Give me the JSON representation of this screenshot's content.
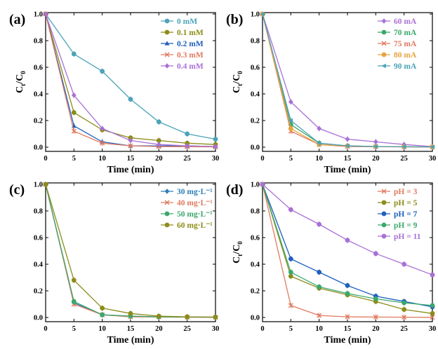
{
  "chart_data": [
    {
      "type": "line",
      "panel_label": "(a)",
      "xlabel": "Time (min)",
      "ylabel_main": "C",
      "ylabel_sub1": "t",
      "ylabel_mid": "/C",
      "ylabel_sub2": "0",
      "x": [
        0,
        5,
        10,
        15,
        20,
        25,
        30
      ],
      "xlim": [
        0,
        30
      ],
      "ylim": [
        0,
        1.0
      ],
      "xticks": [
        0,
        5,
        10,
        15,
        20,
        25,
        30
      ],
      "yticks": [
        0.0,
        0.2,
        0.4,
        0.6,
        0.8,
        1.0
      ],
      "ytick_labels": [
        "0.0",
        "0.2",
        "0.4",
        "0.6",
        "0.8",
        "1.0"
      ],
      "legend_position": "top-right",
      "series": [
        {
          "name": "0   mM",
          "color": "#4aa3b8",
          "marker": "circle",
          "values": [
            1.0,
            0.7,
            0.57,
            0.36,
            0.19,
            0.1,
            0.06
          ]
        },
        {
          "name": "0.1 mM",
          "color": "#8c8c1a",
          "marker": "circle",
          "values": [
            1.0,
            0.26,
            0.13,
            0.07,
            0.05,
            0.03,
            0.02
          ]
        },
        {
          "name": "0.2 mM",
          "color": "#1f5fbf",
          "marker": "triangle",
          "values": [
            1.0,
            0.16,
            0.04,
            0.01,
            0.01,
            0.01,
            0.005
          ]
        },
        {
          "name": "0.3 mM",
          "color": "#e07a5f",
          "marker": "x",
          "values": [
            1.0,
            0.12,
            0.03,
            0.01,
            0.005,
            0.003,
            0.002
          ]
        },
        {
          "name": "0.4 mM",
          "color": "#a970d6",
          "marker": "diamond",
          "values": [
            1.0,
            0.39,
            0.14,
            0.05,
            0.02,
            0.01,
            0.005
          ]
        }
      ]
    },
    {
      "type": "line",
      "panel_label": "(b)",
      "xlabel": "Time (min)",
      "ylabel_main": "C",
      "ylabel_sub1": "t",
      "ylabel_mid": "/C",
      "ylabel_sub2": "0",
      "x": [
        0,
        5,
        10,
        15,
        20,
        25,
        30
      ],
      "xlim": [
        0,
        30
      ],
      "ylim": [
        0,
        1.0
      ],
      "xticks": [
        0,
        5,
        10,
        15,
        20,
        25,
        30
      ],
      "yticks": [
        0.0,
        0.2,
        0.4,
        0.6,
        0.8,
        1.0
      ],
      "ytick_labels": [
        "0.0",
        "0.2",
        "0.4",
        "0.6",
        "0.8",
        "1.0"
      ],
      "legend_position": "top-right",
      "series": [
        {
          "name": "60  mA",
          "color": "#a970d6",
          "marker": "diamond",
          "values": [
            1.0,
            0.34,
            0.14,
            0.06,
            0.04,
            0.02,
            0.005
          ]
        },
        {
          "name": "70  mA",
          "color": "#3aa86b",
          "marker": "circle",
          "values": [
            1.0,
            0.17,
            0.03,
            0.01,
            0.005,
            0.003,
            0.002
          ]
        },
        {
          "name": "75  mA",
          "color": "#e07a5f",
          "marker": "x",
          "values": [
            1.0,
            0.12,
            0.02,
            0.005,
            0.003,
            0.002,
            0.001
          ]
        },
        {
          "name": "80  mA",
          "color": "#e8a33d",
          "marker": "circle",
          "values": [
            1.0,
            0.14,
            0.02,
            0.01,
            0.005,
            0.003,
            0.002
          ]
        },
        {
          "name": "90  mA",
          "color": "#4aa3b8",
          "marker": "triangle-left",
          "values": [
            1.0,
            0.2,
            0.03,
            0.01,
            0.005,
            0.003,
            0.002
          ]
        }
      ]
    },
    {
      "type": "line",
      "panel_label": "(c)",
      "xlabel": "Time (min)",
      "ylabel_main": "",
      "ylabel_sub1": "",
      "ylabel_mid": "",
      "ylabel_sub2": "",
      "x": [
        0,
        5,
        10,
        15,
        20,
        25,
        30
      ],
      "xlim": [
        0,
        30
      ],
      "ylim": [
        0,
        1.0
      ],
      "xticks": [
        0,
        5,
        10,
        15,
        20,
        25,
        30
      ],
      "yticks": [
        0.0,
        0.2,
        0.4,
        0.6,
        0.8,
        1.0
      ],
      "ytick_labels": [
        "0.0",
        "0.2",
        "0.4",
        "0.6",
        "0.8",
        "1.0"
      ],
      "legend_position": "top-right",
      "series": [
        {
          "name": "30  mg·L⁻¹",
          "color": "#2e7fb8",
          "marker": "diamond",
          "values": [
            1.0,
            0.11,
            0.02,
            0.01,
            0.005,
            0.003,
            0.002
          ]
        },
        {
          "name": "40  mg·L⁻¹",
          "color": "#e07a5f",
          "marker": "x",
          "values": [
            1.0,
            0.1,
            0.02,
            0.005,
            0.003,
            0.002,
            0.001
          ]
        },
        {
          "name": "50  mg·L⁻¹",
          "color": "#3aa86b",
          "marker": "circle",
          "values": [
            1.0,
            0.12,
            0.02,
            0.01,
            0.005,
            0.003,
            0.002
          ]
        },
        {
          "name": "60  mg·L⁻¹",
          "color": "#8c8c1a",
          "marker": "circle",
          "values": [
            1.0,
            0.28,
            0.07,
            0.03,
            0.01,
            0.005,
            0.003
          ]
        }
      ]
    },
    {
      "type": "line",
      "panel_label": "(d)",
      "xlabel": "Time (min)",
      "ylabel_main": "C",
      "ylabel_sub1": "t",
      "ylabel_mid": "/C",
      "ylabel_sub2": "0",
      "x": [
        0,
        5,
        10,
        15,
        20,
        25,
        30
      ],
      "xlim": [
        0,
        30
      ],
      "ylim": [
        0,
        1.0
      ],
      "xticks": [
        0,
        5,
        10,
        15,
        20,
        25,
        30
      ],
      "yticks": [
        0.0,
        0.2,
        0.4,
        0.6,
        0.8,
        1.0
      ],
      "ytick_labels": [
        "0.0",
        "0.2",
        "0.4",
        "0.6",
        "0.8",
        "1.0"
      ],
      "legend_position": "top-right",
      "series": [
        {
          "name": "pH = 3",
          "color": "#e07a5f",
          "marker": "x",
          "values": [
            1.0,
            0.09,
            0.015,
            0.005,
            0.003,
            0.002,
            0.001
          ]
        },
        {
          "name": "pH = 5",
          "color": "#8c8c1a",
          "marker": "circle",
          "values": [
            1.0,
            0.31,
            0.22,
            0.17,
            0.12,
            0.06,
            0.03
          ]
        },
        {
          "name": "pH = 7",
          "color": "#1f5fbf",
          "marker": "circle",
          "values": [
            1.0,
            0.44,
            0.34,
            0.24,
            0.16,
            0.12,
            0.08
          ]
        },
        {
          "name": "pH = 9",
          "color": "#3aa86b",
          "marker": "circle",
          "values": [
            1.0,
            0.34,
            0.23,
            0.18,
            0.14,
            0.11,
            0.09
          ]
        },
        {
          "name": "pH = 11",
          "color": "#a970d6",
          "marker": "circle",
          "values": [
            1.0,
            0.81,
            0.7,
            0.58,
            0.48,
            0.4,
            0.32
          ]
        }
      ]
    }
  ]
}
